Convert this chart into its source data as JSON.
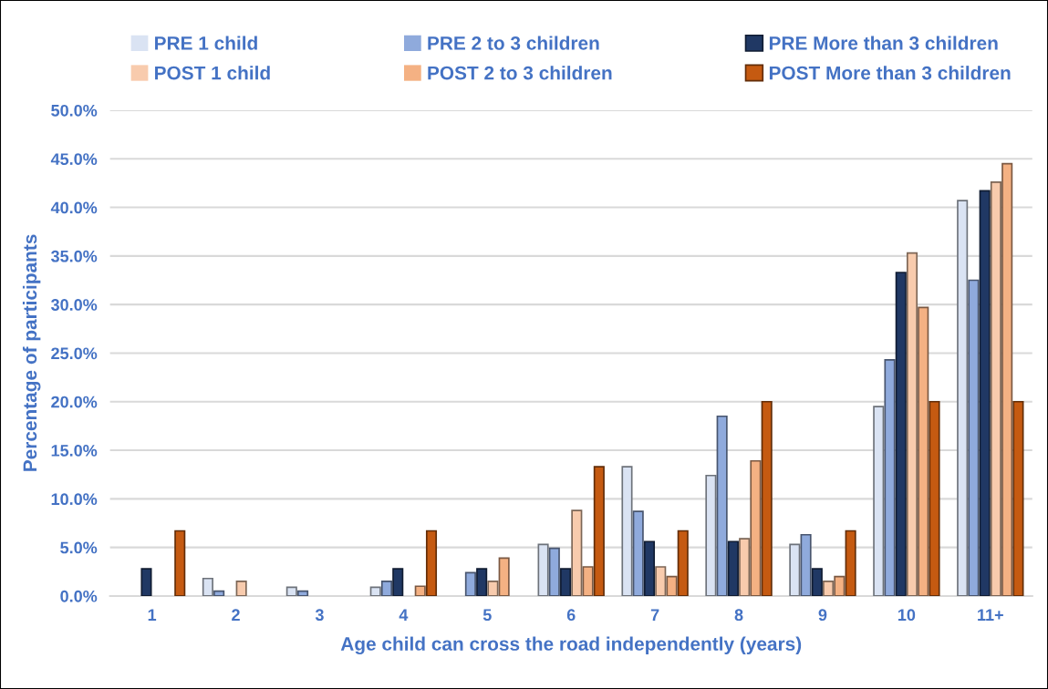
{
  "chart_data": {
    "type": "bar",
    "xlabel": "Age child can cross the road independently (years)",
    "ylabel": "Percentage of participants",
    "categories": [
      "1",
      "2",
      "3",
      "4",
      "5",
      "6",
      "7",
      "8",
      "9",
      "10",
      "11+"
    ],
    "series": [
      {
        "name": "PRE 1 child",
        "color": "#dae3f3",
        "values": [
          0,
          1.8,
          0.9,
          0.9,
          0,
          5.3,
          13.3,
          12.4,
          5.3,
          19.5,
          40.7
        ]
      },
      {
        "name": "PRE 2 to 3 children",
        "color": "#8faadc",
        "values": [
          0,
          0.5,
          0.5,
          1.5,
          2.4,
          4.9,
          8.7,
          18.5,
          6.3,
          24.3,
          32.5
        ]
      },
      {
        "name": "PRE More than 3 children",
        "color": "#203864",
        "values": [
          2.8,
          0,
          0,
          2.8,
          2.8,
          2.8,
          5.6,
          5.6,
          2.8,
          33.3,
          41.7
        ]
      },
      {
        "name": "POST 1 child",
        "color": "#f8cbad",
        "values": [
          0,
          1.5,
          0,
          0,
          1.5,
          8.8,
          3.0,
          5.9,
          1.5,
          35.3,
          42.6
        ]
      },
      {
        "name": "POST 2 to 3 children",
        "color": "#f4b183",
        "values": [
          0,
          0,
          0,
          1.0,
          3.9,
          3.0,
          2.0,
          13.9,
          2.0,
          29.7,
          44.5
        ]
      },
      {
        "name": "POST More than 3 children",
        "color": "#c55a11",
        "values": [
          6.7,
          0,
          0,
          6.7,
          0,
          13.3,
          6.7,
          20.0,
          6.7,
          20.0,
          20.0
        ]
      }
    ],
    "ylim": [
      0,
      50
    ],
    "yticks": [
      {
        "value": 0,
        "label": "0.0%"
      },
      {
        "value": 5,
        "label": "5.0%"
      },
      {
        "value": 10,
        "label": "10.0%"
      },
      {
        "value": 15,
        "label": "15.0%"
      },
      {
        "value": 20,
        "label": "20.0%"
      },
      {
        "value": 25,
        "label": "25.0%"
      },
      {
        "value": 30,
        "label": "30.0%"
      },
      {
        "value": 35,
        "label": "35.0%"
      },
      {
        "value": 40,
        "label": "40.0%"
      },
      {
        "value": 45,
        "label": "45.0%"
      },
      {
        "value": 50,
        "label": "50.0%"
      }
    ],
    "grid": "y",
    "legend": "top"
  }
}
